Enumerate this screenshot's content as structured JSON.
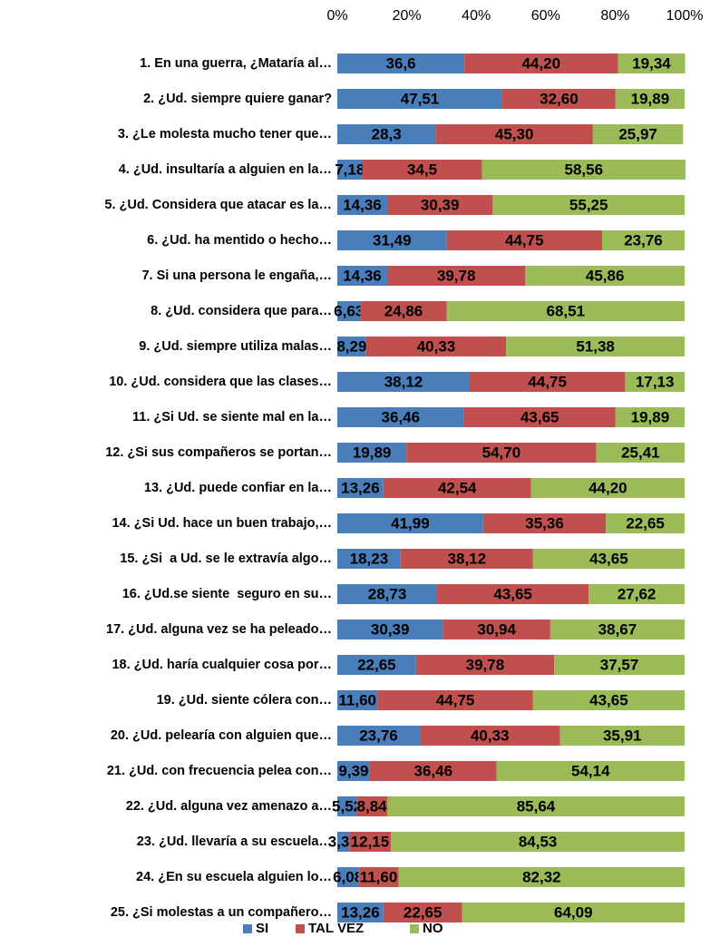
{
  "chart_data": {
    "type": "stacked_bar_horizontal",
    "categories": [
      "1. En una guerra, ¿Mataría al…",
      "2. ¿Ud. siempre quiere ganar?",
      "3. ¿Le molesta mucho tener que…",
      "4. ¿Ud. insultaría a alguien en la…",
      "5. ¿Ud. Considera que atacar es la…",
      "6. ¿Ud. ha mentido o hecho…",
      "7. Si una persona le engaña,…",
      "8. ¿Ud. considera que para…",
      "9. ¿Ud. siempre utiliza malas…",
      "10. ¿Ud. considera que las clases…",
      "11. ¿Si Ud. se siente mal en la…",
      "12. ¿Si sus compañeros se portan…",
      "13. ¿Ud. puede confiar en la…",
      "14. ¿Si Ud. hace un buen trabajo,…",
      "15. ¿Si  a Ud. se le extravía algo…",
      "16. ¿Ud.se siente  seguro en su…",
      "17. ¿Ud. alguna vez se ha peleado…",
      "18. ¿Ud. haría cualquier cosa por…",
      "19. ¿Ud. siente cólera con…",
      "20. ¿Ud. pelearía con alguien que…",
      "21. ¿Ud. con frecuencia pelea con…",
      "22. ¿Ud. alguna vez amenazo a…",
      "23. ¿Ud. llevaría a su escuela…",
      "24. ¿En su escuela alguien lo…",
      "25. ¿Si molestas a un compañero…"
    ],
    "series": [
      {
        "name": "SI",
        "color": "#4a7ebb",
        "values": [
          36.6,
          47.51,
          28.3,
          7.18,
          14.36,
          31.49,
          14.36,
          6.63,
          8.29,
          38.12,
          36.46,
          19.89,
          13.26,
          41.99,
          18.23,
          28.73,
          30.39,
          22.65,
          11.6,
          23.76,
          9.39,
          5.52,
          3.31,
          6.08,
          13.26
        ],
        "value_labels": [
          "36,6",
          "47,51",
          "28,3",
          "7,18",
          "14,36",
          "31,49",
          "14,36",
          "6,63",
          "8,29",
          "38,12",
          "36,46",
          "19,89",
          "13,26",
          "41,99",
          "18,23",
          "28,73",
          "30,39",
          "22,65",
          "11,60",
          "23,76",
          "9,39",
          "5,52",
          "3,31",
          "6,08",
          "13,26"
        ]
      },
      {
        "name": "TAL VEZ",
        "color": "#c0504d",
        "values": [
          44.2,
          32.6,
          45.3,
          34.5,
          30.39,
          44.75,
          39.78,
          24.86,
          40.33,
          44.75,
          43.65,
          54.7,
          42.54,
          35.36,
          38.12,
          43.65,
          30.94,
          39.78,
          44.75,
          40.33,
          36.46,
          8.84,
          12.15,
          11.6,
          22.65
        ],
        "value_labels": [
          "44,20",
          "32,60",
          "45,30",
          "34,5",
          "30,39",
          "44,75",
          "39,78",
          "24,86",
          "40,33",
          "44,75",
          "43,65",
          "54,70",
          "42,54",
          "35,36",
          "38,12",
          "43,65",
          "30,94",
          "39,78",
          "44,75",
          "40,33",
          "36,46",
          "8,84",
          "12,15",
          "11,60",
          "22,65"
        ]
      },
      {
        "name": "NO",
        "color": "#9bbb59",
        "values": [
          19.34,
          19.89,
          25.97,
          58.56,
          55.25,
          23.76,
          45.86,
          68.51,
          51.38,
          17.13,
          19.89,
          25.41,
          44.2,
          22.65,
          43.65,
          27.62,
          38.67,
          37.57,
          43.65,
          35.91,
          54.14,
          85.64,
          84.53,
          82.32,
          64.09
        ],
        "value_labels": [
          "19,34",
          "19,89",
          "25,97",
          "58,56",
          "55,25",
          "23,76",
          "45,86",
          "68,51",
          "51,38",
          "17,13",
          "19,89",
          "25,41",
          "44,20",
          "22,65",
          "43,65",
          "27,62",
          "38,67",
          "37,57",
          "43,65",
          "35,91",
          "54,14",
          "85,64",
          "84,53",
          "82,32",
          "64,09"
        ]
      }
    ],
    "xlim": [
      0,
      100
    ],
    "xticks": [
      {
        "value": 0,
        "label": "0%"
      },
      {
        "value": 20,
        "label": "20%"
      },
      {
        "value": 40,
        "label": "40%"
      },
      {
        "value": 60,
        "label": "60%"
      },
      {
        "value": 80,
        "label": "80%"
      },
      {
        "value": 100,
        "label": "100%"
      }
    ],
    "legend": "bottom"
  }
}
